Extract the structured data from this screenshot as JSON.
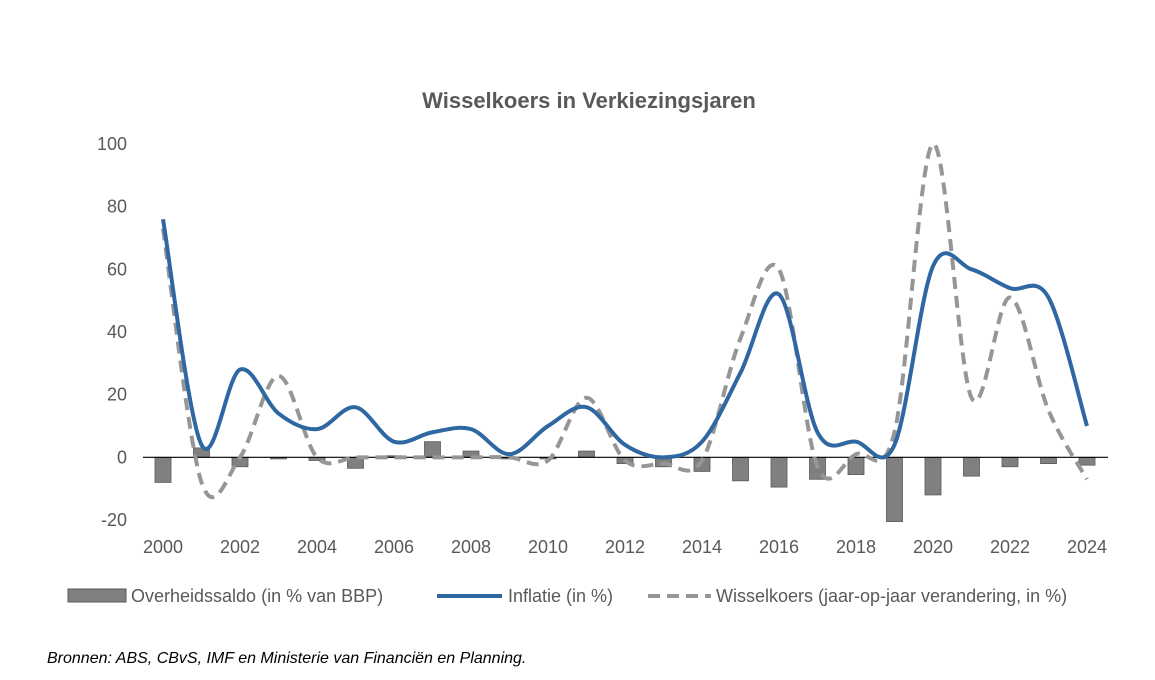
{
  "chart_data": {
    "type": "bar+line",
    "title": "Wisselkoers in Verkiezingsjaren",
    "categories": [
      "2000",
      "2001",
      "2002",
      "2003",
      "2004",
      "2005",
      "2006",
      "2007",
      "2008",
      "2009",
      "2010",
      "2011",
      "2012",
      "2013",
      "2014",
      "2015",
      "2016",
      "2017",
      "2018",
      "2019",
      "2020",
      "2021",
      "2022",
      "2023",
      "2024"
    ],
    "x_tick_labels": [
      "2000",
      "2002",
      "2004",
      "2006",
      "2008",
      "2010",
      "2012",
      "2014",
      "2016",
      "2018",
      "2020",
      "2022",
      "2024"
    ],
    "y_tick_labels": [
      "100",
      "80",
      "60",
      "40",
      "20",
      "0",
      "-20"
    ],
    "ylim": [
      -20,
      100
    ],
    "series": [
      {
        "name": "Overheidssaldo (in % van BBP)",
        "kind": "bar",
        "color": "#808080",
        "values": [
          -8,
          3,
          -3,
          -0.5,
          -1,
          -3.5,
          0.5,
          5,
          2,
          -0.5,
          -0.5,
          2,
          -2,
          -3,
          -4.5,
          -7.5,
          -9.5,
          -7,
          -5.5,
          -20.5,
          -12,
          -6,
          -3,
          -2,
          -2.5
        ]
      },
      {
        "name": "Inflatie (in %)",
        "kind": "line",
        "color": "#2e67a1",
        "values": [
          76,
          4,
          28,
          14,
          9,
          16,
          5,
          8,
          9,
          1,
          10,
          16,
          4,
          0,
          5,
          27,
          52,
          8,
          5,
          4,
          61,
          60,
          54,
          51,
          10
        ]
      },
      {
        "name": "Wisselkoers (jaar-op-jaar verandering, in %)",
        "kind": "dashed-line",
        "color": "#969696",
        "values": [
          73,
          -8,
          0,
          26,
          0,
          0,
          0,
          0,
          0,
          0,
          -1,
          19,
          -1,
          -2,
          -1,
          38,
          60,
          -3,
          1,
          8,
          100,
          19,
          51,
          15,
          -7
        ]
      }
    ],
    "legend_position": "bottom"
  },
  "source_text": "Bronnen: ABS, CBvS, IMF en Ministerie van Financiën en Planning."
}
